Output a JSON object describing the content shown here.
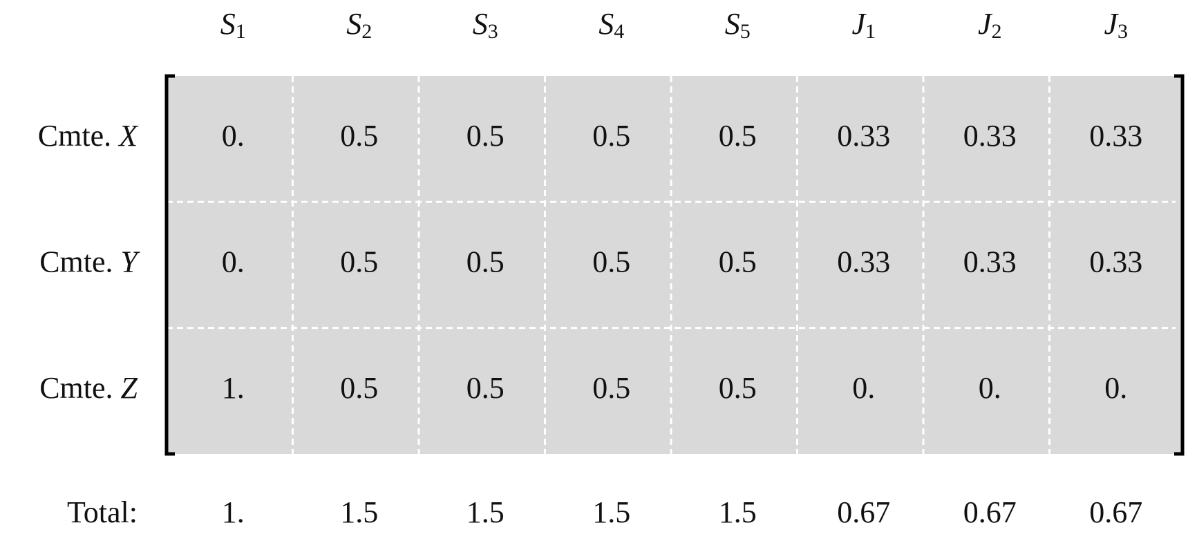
{
  "matrix": {
    "columns": [
      {
        "symbol": "S",
        "index": "1"
      },
      {
        "symbol": "S",
        "index": "2"
      },
      {
        "symbol": "S",
        "index": "3"
      },
      {
        "symbol": "S",
        "index": "4"
      },
      {
        "symbol": "S",
        "index": "5"
      },
      {
        "symbol": "J",
        "index": "1"
      },
      {
        "symbol": "J",
        "index": "2"
      },
      {
        "symbol": "J",
        "index": "3"
      }
    ],
    "rows": [
      {
        "prefix": "Cmte.",
        "name": "X",
        "cells": [
          "0.",
          "0.5",
          "0.5",
          "0.5",
          "0.5",
          "0.33",
          "0.33",
          "0.33"
        ]
      },
      {
        "prefix": "Cmte.",
        "name": "Y",
        "cells": [
          "0.",
          "0.5",
          "0.5",
          "0.5",
          "0.5",
          "0.33",
          "0.33",
          "0.33"
        ]
      },
      {
        "prefix": "Cmte.",
        "name": "Z",
        "cells": [
          "1.",
          "0.5",
          "0.5",
          "0.5",
          "0.5",
          "0.",
          "0.",
          "0."
        ]
      }
    ],
    "total": {
      "label": "Total:",
      "cells": [
        "1.",
        "1.5",
        "1.5",
        "1.5",
        "1.5",
        "0.67",
        "0.67",
        "0.67"
      ]
    }
  }
}
